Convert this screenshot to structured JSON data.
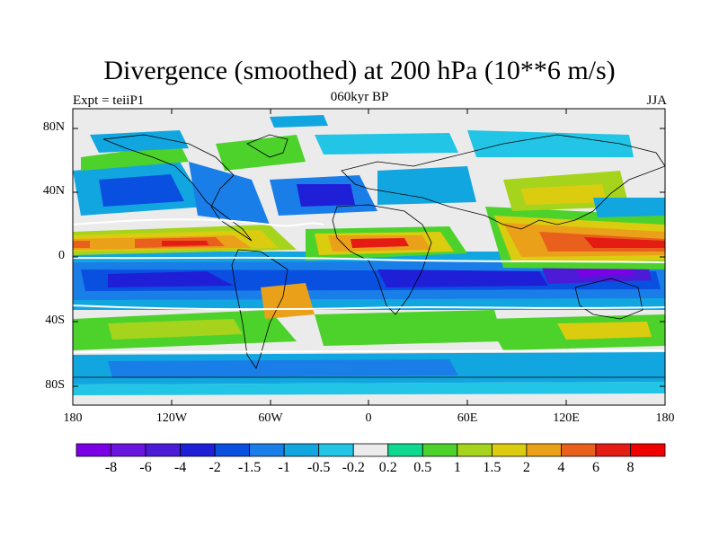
{
  "title": "Divergence (smoothed) at 200 hPa (10**6 m/s)",
  "subtitle_left": "Expt = teiiP1",
  "subtitle_center": "060kyr BP",
  "subtitle_right": "JJA",
  "lat_ticks": [
    "80N",
    "40N",
    "0",
    "40S",
    "80S"
  ],
  "lon_ticks": [
    "180",
    "120W",
    "60W",
    "0",
    "60E",
    "120E",
    "180"
  ],
  "colorbar_labels": [
    "-8",
    "-6",
    "-4",
    "-2",
    "-1.5",
    "-1",
    "-0.5",
    "-0.2",
    "0.2",
    "0.5",
    "1",
    "1.5",
    "2",
    "4",
    "6",
    "8"
  ],
  "colorbar_colors": [
    "#7a00e6",
    "#6a14e0",
    "#4b1bd8",
    "#1f1fd8",
    "#0a50e0",
    "#1a7ee8",
    "#12a6e0",
    "#22c5e5",
    "#ebebeb",
    "#0fd890",
    "#4cd22a",
    "#a6d41c",
    "#dccc10",
    "#eba01a",
    "#e8601c",
    "#e41c14",
    "#f00000"
  ],
  "land_color": "#000000",
  "background_color": "#ebebeb"
}
